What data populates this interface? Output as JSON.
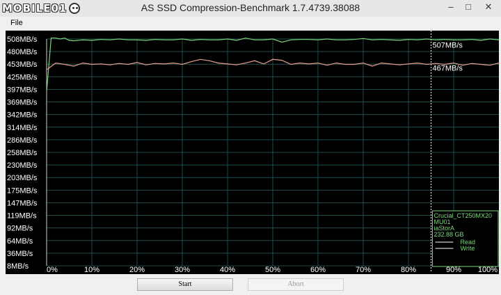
{
  "window": {
    "title": "AS SSD Compression-Benchmark 1.7.4739.38088",
    "minimize_glyph": "–",
    "maximize_glyph": "□",
    "close_glyph": "✕"
  },
  "watermark": "MOBILE01",
  "menu": {
    "file": "File"
  },
  "buttons": {
    "start": "Start",
    "abort": "Abort"
  },
  "colors": {
    "read": "#7cd67c",
    "write": "#e8a090",
    "grid": "#1f4d4d",
    "info_border": "#7cd67c"
  },
  "chart_data": {
    "type": "line",
    "y_ticks": [
      "508MB/s",
      "480MB/s",
      "453MB/s",
      "425MB/s",
      "397MB/s",
      "369MB/s",
      "342MB/s",
      "314MB/s",
      "286MB/s",
      "258MB/s",
      "230MB/s",
      "203MB/s",
      "175MB/s",
      "147MB/s",
      "119MB/s",
      "92MB/s",
      "64MB/s",
      "36MB/s",
      "8MB/s"
    ],
    "x_ticks": [
      "0%",
      "10%",
      "20%",
      "30%",
      "40%",
      "50%",
      "60%",
      "70%",
      "80%",
      "90%",
      "100%"
    ],
    "ylim": [
      8,
      508
    ],
    "xlim": [
      0,
      100
    ],
    "current_x": 85,
    "series": [
      {
        "name": "Read",
        "final_label": "507MB/s",
        "x": [
          0,
          1,
          2,
          3,
          4,
          5,
          6,
          8,
          10,
          12,
          14,
          16,
          18,
          20,
          22,
          24,
          26,
          28,
          30,
          32,
          34,
          36,
          38,
          40,
          42,
          44,
          46,
          48,
          50,
          52,
          54,
          56,
          58,
          60,
          62,
          64,
          66,
          68,
          70,
          72,
          74,
          76,
          78,
          80,
          82,
          84,
          86,
          88,
          90,
          92,
          94,
          96,
          98,
          100
        ],
        "y": [
          392,
          510,
          510,
          508,
          510,
          505,
          504,
          506,
          505,
          507,
          506,
          508,
          506,
          506,
          505,
          507,
          506,
          506,
          508,
          505,
          507,
          506,
          506,
          508,
          505,
          510,
          506,
          506,
          508,
          501,
          506,
          507,
          507,
          506,
          508,
          506,
          506,
          507,
          509,
          506,
          507,
          506,
          505,
          507,
          506,
          508,
          506,
          507,
          506,
          506,
          507,
          505,
          508,
          506
        ]
      },
      {
        "name": "Write",
        "final_label": "467MB/s",
        "x": [
          0,
          2,
          4,
          6,
          8,
          10,
          12,
          14,
          16,
          18,
          20,
          22,
          24,
          26,
          28,
          30,
          32,
          34,
          36,
          38,
          40,
          42,
          44,
          46,
          48,
          50,
          52,
          54,
          56,
          58,
          60,
          62,
          64,
          66,
          68,
          70,
          72,
          74,
          76,
          78,
          80,
          82,
          84,
          86,
          88,
          90,
          92,
          94,
          96,
          98,
          100
        ],
        "y": [
          440,
          455,
          452,
          448,
          455,
          452,
          453,
          451,
          454,
          452,
          456,
          451,
          454,
          453,
          455,
          452,
          458,
          463,
          460,
          455,
          453,
          451,
          455,
          460,
          453,
          463,
          461,
          452,
          455,
          453,
          455,
          450,
          455,
          452,
          452,
          455,
          448,
          455,
          453,
          451,
          453,
          455,
          452,
          454,
          452,
          455,
          450,
          454,
          452,
          450,
          455
        ]
      }
    ],
    "device_info": {
      "lines": [
        "Crucial_CT250MX20",
        "MU01",
        "iaStorA",
        "232.88 GB"
      ],
      "legend": [
        "Read",
        "Write"
      ]
    }
  }
}
